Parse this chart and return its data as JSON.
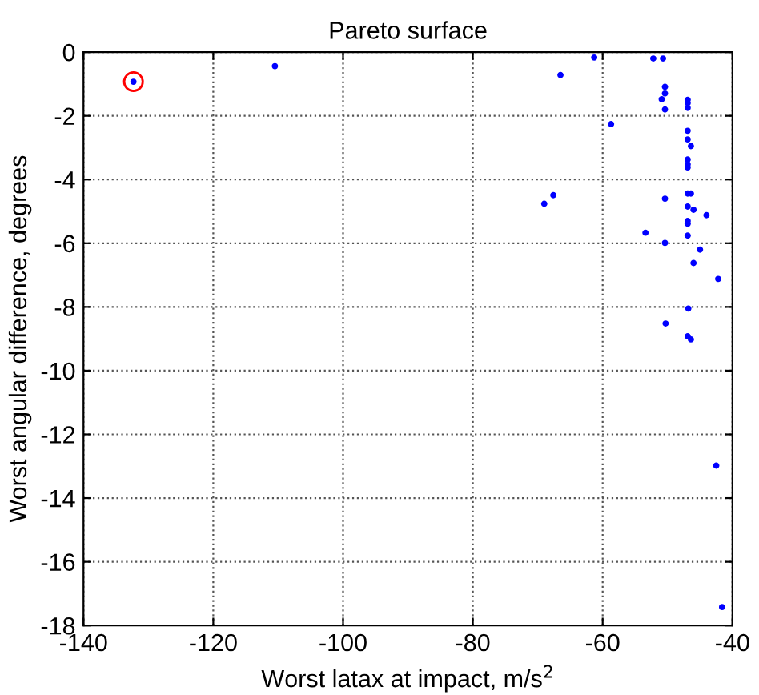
{
  "chart_data": {
    "type": "scatter",
    "title": "Pareto surface",
    "xlabel": "Worst latax at impact, m/s$^{2}$",
    "ylabel": "Worst angular difference, degrees",
    "xlim": [
      -140,
      -40
    ],
    "ylim": [
      -18,
      0
    ],
    "xticks": [
      -140,
      -120,
      -100,
      -80,
      -60,
      -40
    ],
    "yticks": [
      -18,
      -16,
      -14,
      -12,
      -10,
      -8,
      -6,
      -4,
      -2,
      0
    ],
    "grid": true,
    "marker": "circle",
    "series": [
      {
        "color": "#0000ff",
        "x": [
          -132.3,
          -110.5,
          -66.5,
          -61.3,
          -52.2,
          -50.7,
          -50.4,
          -50.4,
          -50.9,
          -50.4,
          -46.9,
          -46.9,
          -46.9,
          -58.7,
          -46.9,
          -46.9,
          -46.4,
          -46.9,
          -46.9,
          -46.9,
          -67.6,
          -69.0,
          -50.4,
          -46.9,
          -46.4,
          -46.9,
          -46.0,
          -44.0,
          -46.9,
          -46.9,
          -53.4,
          -46.9,
          -50.4,
          -45.0,
          -46.0,
          -42.2,
          -46.8,
          -50.3,
          -46.9,
          -46.4,
          -42.5,
          -41.6
        ],
        "values": [
          -0.93,
          -0.44,
          -0.72,
          -0.17,
          -0.2,
          -0.2,
          -1.09,
          -1.3,
          -1.48,
          -1.8,
          -1.5,
          -1.6,
          -1.75,
          -2.26,
          -2.47,
          -2.74,
          -2.95,
          -3.37,
          -3.52,
          -3.62,
          -4.49,
          -4.76,
          -4.6,
          -4.44,
          -4.44,
          -4.85,
          -4.95,
          -5.12,
          -5.3,
          -5.39,
          -5.67,
          -5.76,
          -5.99,
          -6.2,
          -6.62,
          -7.12,
          -8.05,
          -8.52,
          -8.92,
          -9.02,
          -12.98,
          -17.42
        ]
      },
      {
        "color": "#ff0000",
        "marker": "hollow circle",
        "x": [
          -132.3
        ],
        "values": [
          -0.93
        ]
      }
    ]
  }
}
